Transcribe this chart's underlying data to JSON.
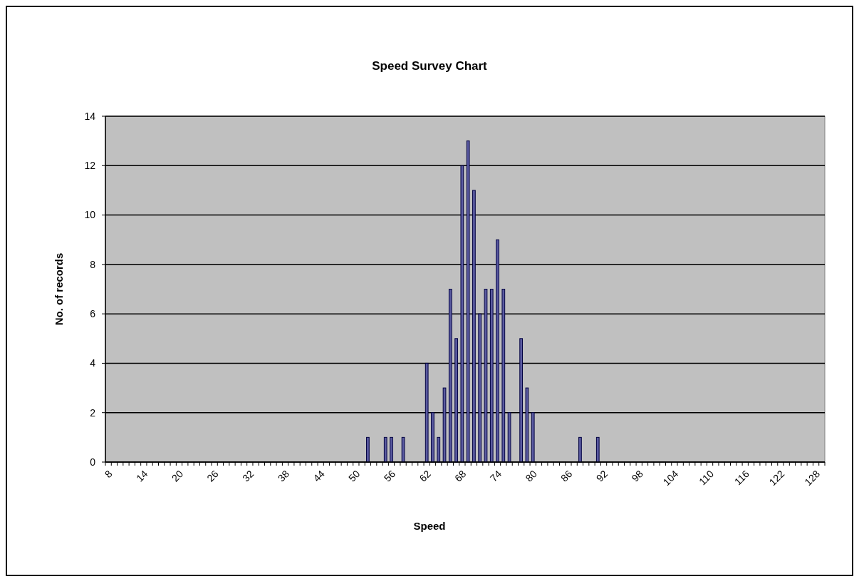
{
  "chart_data": {
    "type": "bar",
    "title": "Speed Survey Chart",
    "xlabel": "Speed",
    "ylabel": "No. of records",
    "categories": [
      "8",
      null,
      null,
      null,
      null,
      null,
      "14",
      null,
      null,
      null,
      null,
      null,
      "20",
      null,
      null,
      null,
      null,
      null,
      "26",
      null,
      null,
      null,
      null,
      null,
      "32",
      null,
      null,
      null,
      null,
      null,
      "38",
      null,
      null,
      null,
      null,
      null,
      "44",
      null,
      null,
      null,
      null,
      null,
      "50",
      null,
      null,
      null,
      null,
      null,
      "56",
      null,
      null,
      null,
      null,
      null,
      "62",
      null,
      null,
      null,
      null,
      null,
      "68",
      null,
      null,
      null,
      null,
      null,
      "74",
      null,
      null,
      null,
      null,
      null,
      "80",
      null,
      null,
      null,
      null,
      null,
      "86",
      null,
      null,
      null,
      null,
      null,
      "92",
      null,
      null,
      null,
      null,
      null,
      "98",
      null,
      null,
      null,
      null,
      null,
      "104",
      null,
      null,
      null,
      null,
      null,
      "110",
      null,
      null,
      null,
      null,
      null,
      "116",
      null,
      null,
      null,
      null,
      null,
      "122",
      null,
      null,
      null,
      null,
      null,
      "128",
      null
    ],
    "values": [
      0,
      0,
      0,
      0,
      0,
      0,
      0,
      0,
      0,
      0,
      0,
      0,
      0,
      0,
      0,
      0,
      0,
      0,
      0,
      0,
      0,
      0,
      0,
      0,
      0,
      0,
      0,
      0,
      0,
      0,
      0,
      0,
      0,
      0,
      0,
      0,
      0,
      0,
      0,
      0,
      0,
      0,
      0,
      0,
      1,
      0,
      0,
      1,
      1,
      0,
      1,
      0,
      0,
      0,
      4,
      2,
      1,
      3,
      7,
      5,
      12,
      13,
      11,
      6,
      7,
      7,
      9,
      7,
      2,
      0,
      5,
      3,
      2,
      0,
      0,
      0,
      0,
      0,
      0,
      0,
      1,
      0,
      0,
      1,
      0,
      0,
      0,
      0,
      0,
      0,
      0,
      0,
      0,
      0,
      0,
      0,
      0,
      0,
      0,
      0,
      0,
      0,
      0,
      0,
      0,
      0,
      0,
      0,
      0,
      0,
      0,
      0,
      0,
      0,
      0,
      0,
      0,
      0,
      0,
      0,
      0,
      0
    ],
    "color": "#5a5aa0",
    "ylim": [
      0,
      14
    ],
    "yticks": [
      0,
      2,
      4,
      6,
      8,
      10,
      12,
      14
    ],
    "grid": "y"
  }
}
